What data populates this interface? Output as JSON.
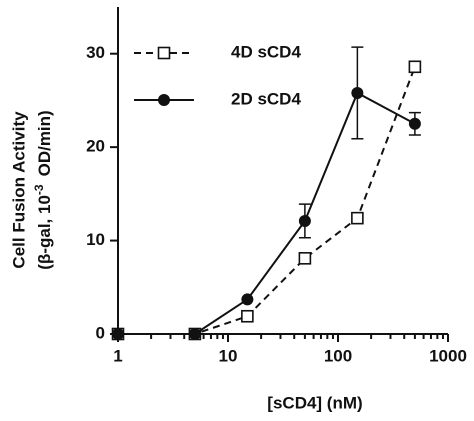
{
  "chart_data": {
    "type": "line",
    "x_label": "[sCD4]  (nM)",
    "y_label": [
      "Cell Fusion Activity",
      "(β-gal, 10",
      "-3",
      "OD/min)"
    ],
    "x": [
      1,
      5,
      15,
      50,
      150,
      500
    ],
    "xscale": "log",
    "xlim": [
      1,
      1000
    ],
    "xticks": [
      1,
      10,
      100,
      1000
    ],
    "ylim": [
      0,
      35
    ],
    "yticks": [
      0,
      10,
      20,
      30
    ],
    "legend": "upper left",
    "series": [
      {
        "name": "4D sCD4",
        "color": "#111111",
        "dash": true,
        "marker": "open-square",
        "values": [
          0,
          0,
          1.9,
          8.1,
          12.4,
          28.6
        ]
      },
      {
        "name": "2D sCD4",
        "color": "#111111",
        "dash": false,
        "marker": "filled-circle",
        "values": [
          0,
          0,
          3.7,
          12.1,
          25.8,
          22.5
        ],
        "errors": [
          null,
          null,
          null,
          1.8,
          4.9,
          1.2
        ]
      }
    ]
  }
}
